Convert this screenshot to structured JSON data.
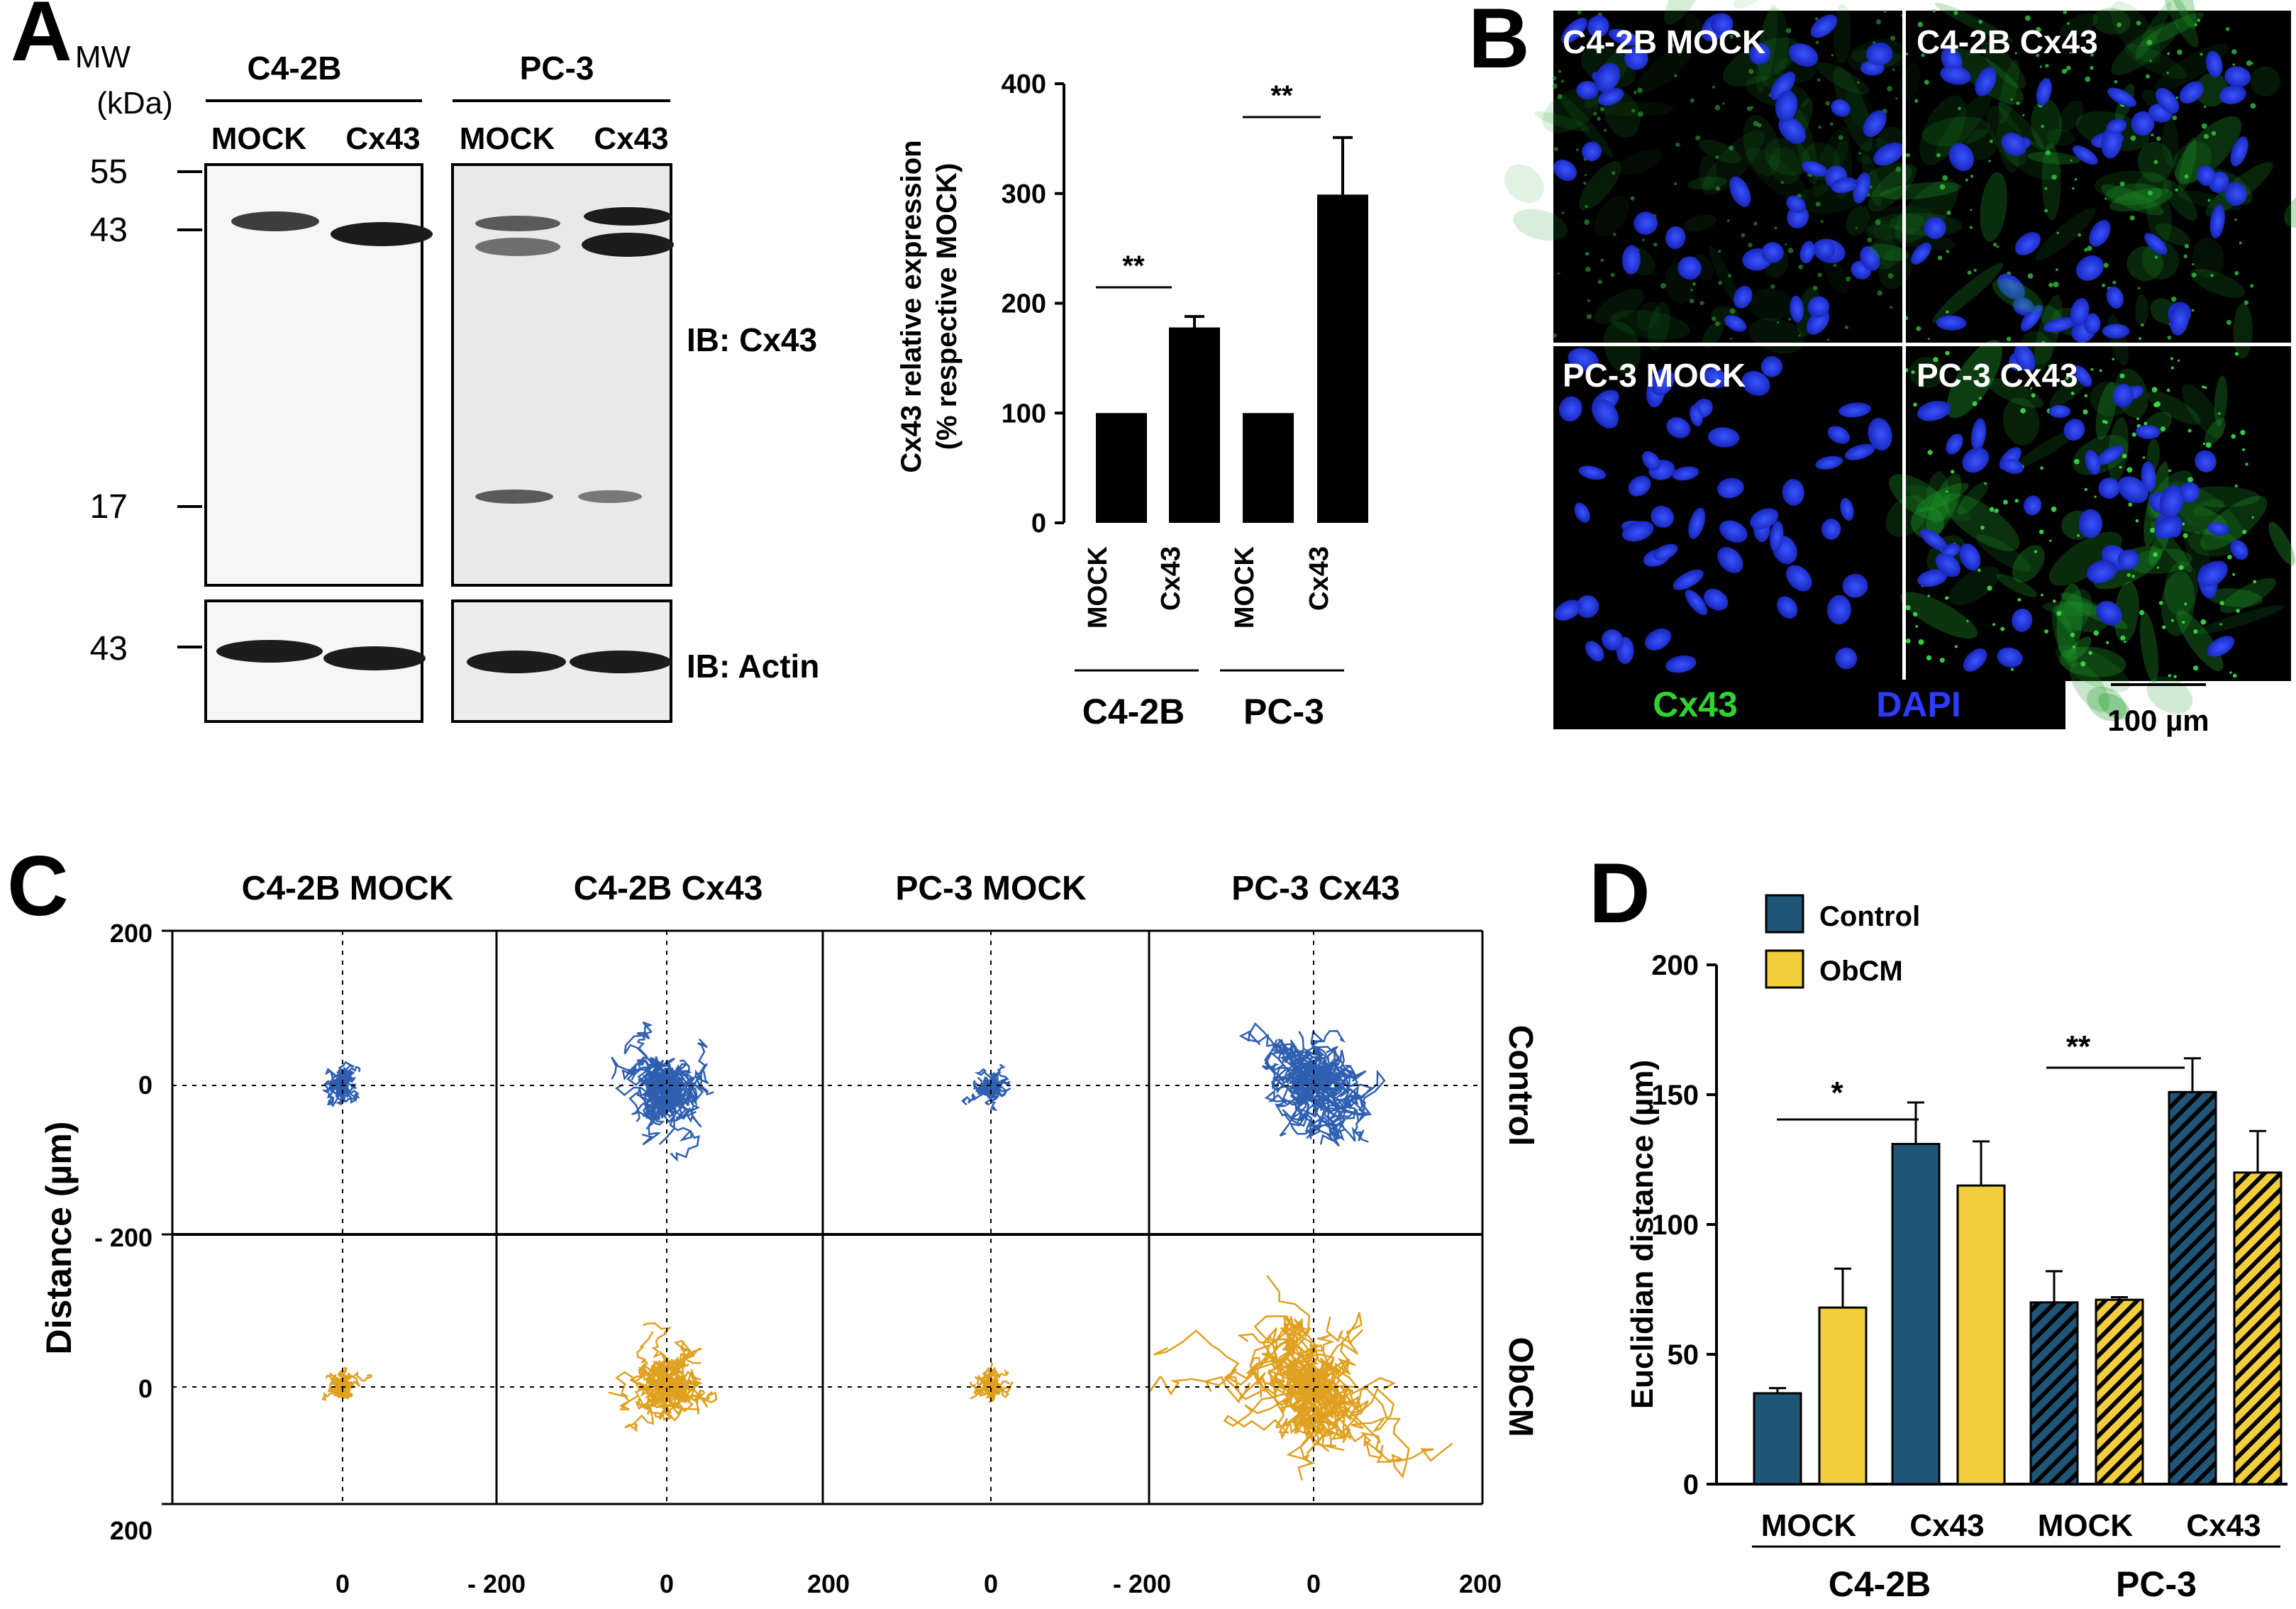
{
  "panel_labels": {
    "a": "A",
    "b": "B",
    "c": "C",
    "d": "D"
  },
  "panel_a": {
    "mw_label": "MW",
    "mw_unit": "(kDa)",
    "cell_lines": [
      "C4-2B",
      "PC-3"
    ],
    "lanes": [
      "MOCK",
      "Cx43",
      "MOCK",
      "Cx43"
    ],
    "markers_top": [
      "55",
      "43",
      "17"
    ],
    "marker_actin": "43",
    "ib_cx43": "IB: Cx43",
    "ib_actin": "IB: Actin"
  },
  "chart_a": {
    "type": "bar",
    "ylabel_line1": "Cx43 relative expression",
    "ylabel_line2": "(% respective MOCK)",
    "ylim": [
      0,
      400
    ],
    "yticks": [
      "0",
      "100",
      "200",
      "300",
      "400"
    ],
    "categories": [
      "MOCK",
      "Cx43",
      "MOCK",
      "Cx43"
    ],
    "groups": [
      "C4-2B",
      "PC-3"
    ],
    "sig": [
      "**",
      "**"
    ]
  },
  "panel_b": {
    "tiles": [
      "C4-2B MOCK",
      "C4-2B Cx43",
      "PC-3 MOCK",
      "PC-3 Cx43"
    ],
    "legend_cx43": "Cx43",
    "legend_dapi": "DAPI",
    "scale_bar": "100 µm",
    "colors": {
      "cx43": "#22b322",
      "dapi": "#2a3ef0"
    }
  },
  "panel_c": {
    "columns": [
      "C4-2B MOCK",
      "C4-2B Cx43",
      "PC-3 MOCK",
      "PC-3 Cx43"
    ],
    "rows": [
      "Control",
      "ObCM"
    ],
    "ylabel": "Distance (µm)",
    "yticks": [
      "200",
      "0",
      "- 200",
      "0",
      "200"
    ],
    "xticks": [
      "0",
      "- 200",
      "0",
      "200",
      "0",
      "- 200",
      "0",
      "200"
    ],
    "colors": {
      "control": "#2f5fb0",
      "obcm": "#e0a020"
    }
  },
  "chart_data": [
    {
      "type": "bar",
      "title": "",
      "xlabel": "",
      "ylabel": "Cx43 relative expression (% respective MOCK)",
      "ylim": [
        0,
        400
      ],
      "categories": [
        "C4-2B MOCK",
        "C4-2B Cx43",
        "PC-3 MOCK",
        "PC-3 Cx43"
      ],
      "values": [
        100,
        178,
        100,
        299
      ],
      "errors": [
        0,
        10,
        0,
        52
      ]
    },
    {
      "type": "bar",
      "title": "",
      "xlabel": "",
      "ylabel": "Euclidian distance (µm)",
      "ylim": [
        0,
        200
      ],
      "yticks": [
        "0",
        "50",
        "100",
        "150",
        "200"
      ],
      "categories": [
        "C4-2B MOCK",
        "C4-2B Cx43",
        "PC-3 MOCK",
        "PC-3 Cx43"
      ],
      "cat_short": [
        "MOCK",
        "Cx43",
        "MOCK",
        "Cx43"
      ],
      "groups": [
        "C4-2B",
        "PC-3"
      ],
      "legend": [
        "Control",
        "ObCM"
      ],
      "legend_position": "top-left",
      "colors": {
        "control": "#1f5577",
        "obcm": "#f2cd3c"
      },
      "series": [
        {
          "name": "Control",
          "values": [
            35,
            131,
            70,
            151
          ],
          "errors": [
            2,
            16,
            12,
            13
          ]
        },
        {
          "name": "ObCM",
          "values": [
            68,
            115,
            71,
            120
          ],
          "errors": [
            15,
            17,
            1,
            16
          ]
        }
      ],
      "sig": [
        "*",
        "**"
      ]
    }
  ]
}
